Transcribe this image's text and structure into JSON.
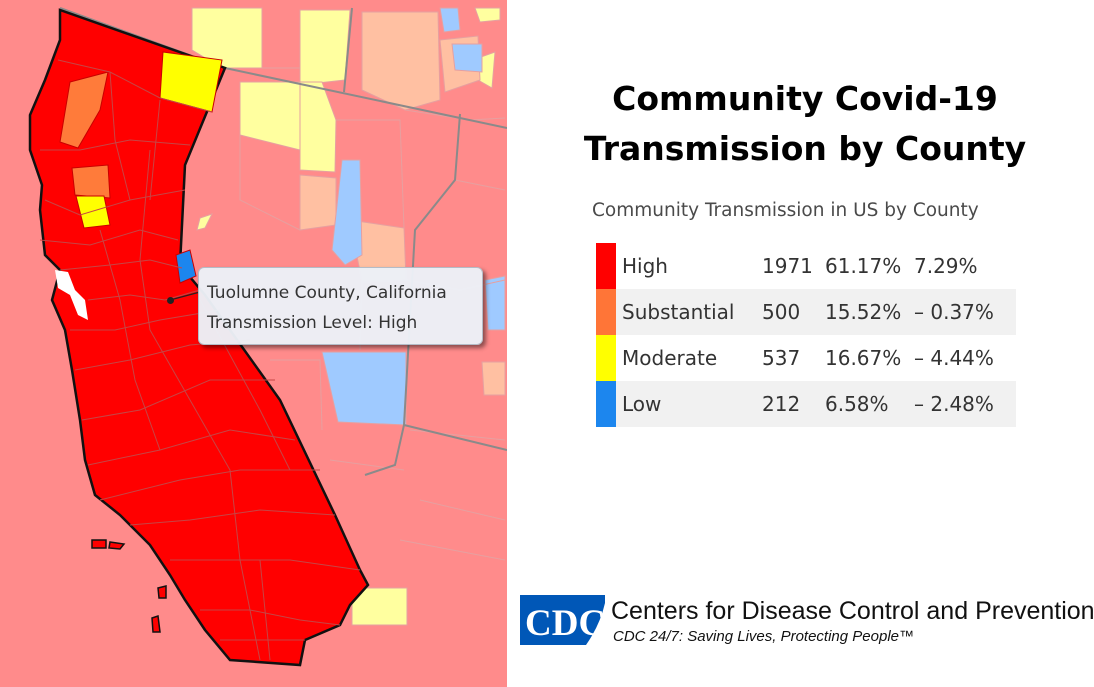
{
  "title_line1": "Community Covid-19",
  "title_line2": "Transmission by County",
  "legend": {
    "title": "Community Transmission in US by County",
    "rows": [
      {
        "level": "High",
        "count": "1971",
        "percent": "61.17%",
        "change": "7.29%",
        "color": "#ff0000"
      },
      {
        "level": "Substantial",
        "count": "500",
        "percent": "15.52%",
        "change": "– 0.37%",
        "color": "#ff7537"
      },
      {
        "level": "Moderate",
        "count": "537",
        "percent": "16.67%",
        "change": "– 4.44%",
        "color": "#ffff00"
      },
      {
        "level": "Low",
        "count": "212",
        "percent": "6.58%",
        "change": "– 2.48%",
        "color": "#1c86ee"
      }
    ]
  },
  "tooltip": {
    "county": "Tuolumne County, California",
    "level": "Transmission Level: High"
  },
  "map_colors": {
    "high_focus": "#ff0000",
    "high_faded": "#ff8b8b",
    "substantial_focus": "#ff7b3a",
    "substantial_faded": "#ffc0a2",
    "moderate_focus": "#ffff00",
    "moderate_faded": "#ffff9f",
    "low_focus": "#1c86ee",
    "low_faded": "#9fcaff"
  },
  "cdc": {
    "logo_text": "CDC",
    "name": "Centers for Disease Control and Prevention",
    "tagline": "CDC 24/7: Saving Lives, Protecting People™",
    "logo_color": "#0057b7"
  }
}
